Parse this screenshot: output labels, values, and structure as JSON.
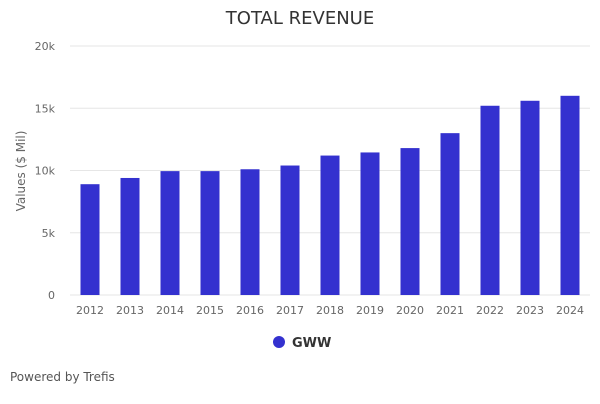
{
  "chart_data": {
    "type": "bar",
    "title": "TOTAL REVENUE",
    "ylabel": "Values ($ Mil)",
    "xlabel": "",
    "categories": [
      "2012",
      "2013",
      "2014",
      "2015",
      "2016",
      "2017",
      "2018",
      "2019",
      "2020",
      "2021",
      "2022",
      "2023",
      "2024"
    ],
    "series": [
      {
        "name": "GWW",
        "values": [
          8900,
          9400,
          9950,
          9950,
          10100,
          10400,
          11200,
          11450,
          11800,
          13000,
          15200,
          15600,
          16000
        ]
      }
    ],
    "ylim": [
      0,
      20000
    ],
    "yticks": [
      0,
      5000,
      10000,
      15000,
      20000
    ],
    "ytick_labels": [
      "0",
      "5k",
      "10k",
      "15k",
      "20k"
    ],
    "grid": true,
    "legend_position": "bottom-center",
    "colors": {
      "bar": "#3431cf",
      "grid": "#e6e6e6",
      "axis_text": "#666666",
      "title": "#333333"
    }
  },
  "footer": {
    "text": "Powered by Trefis"
  }
}
